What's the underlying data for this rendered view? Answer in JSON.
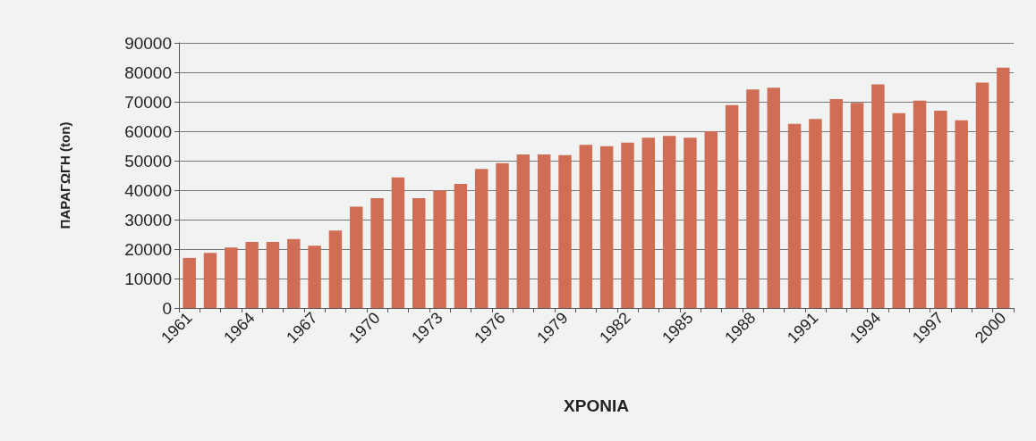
{
  "chart_data": {
    "type": "bar",
    "xlabel": "ΧΡΟΝΙΑ",
    "ylabel": "ΠΑΡΑΓΩΓΗ (ton)",
    "categories": [
      "1961",
      null,
      null,
      "1964",
      null,
      null,
      "1967",
      null,
      null,
      "1970",
      null,
      null,
      "1973",
      null,
      null,
      "1976",
      null,
      null,
      "1979",
      null,
      null,
      "1982",
      null,
      null,
      "1985",
      null,
      null,
      "1988",
      null,
      null,
      "1991",
      null,
      null,
      "1994",
      null,
      null,
      "1997",
      null,
      null,
      "2000"
    ],
    "values": [
      17000,
      18700,
      20500,
      22400,
      22400,
      23400,
      21100,
      26300,
      34400,
      37300,
      44300,
      37300,
      39900,
      42100,
      47200,
      49200,
      52100,
      52100,
      51900,
      55400,
      54900,
      56100,
      57800,
      58400,
      57800,
      60000,
      68900,
      74200,
      74800,
      62500,
      64200,
      70900,
      69600,
      75900,
      66100,
      70400,
      67000,
      63700,
      76500,
      81600
    ],
    "color": "#cf6e55",
    "ylim": [
      0,
      90000
    ],
    "yticks": [
      0,
      10000,
      20000,
      30000,
      40000,
      50000,
      60000,
      70000,
      80000,
      90000
    ],
    "grid": "y"
  }
}
